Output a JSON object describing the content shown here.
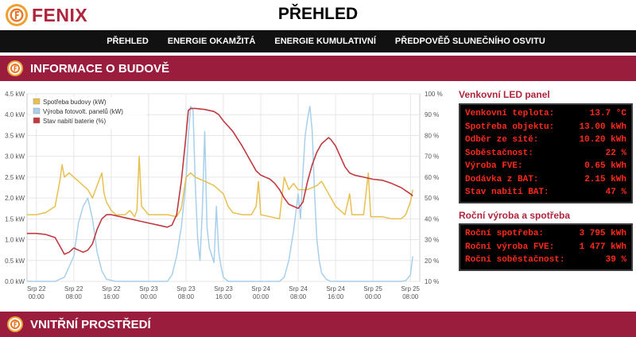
{
  "app": {
    "logo_text": "FENIX",
    "page_title": "PŘEHLED"
  },
  "nav": {
    "items": [
      "PŘEHLED",
      "ENERGIE OKAMŽITÁ",
      "ENERGIE KUMULATIVNÍ",
      "PŘEDPOVĚĎ SLUNEČNÍHO OSVITU"
    ]
  },
  "sections": {
    "building": "INFORMACE O BUDOVĚ",
    "indoor": "VNITŘNÍ PROSTŘEDÍ"
  },
  "colors": {
    "brand": "#9b1d3d",
    "consumption": "#e8c050",
    "pv": "#a8d0ec",
    "battery": "#c0393f",
    "led_text": "#ff2a1a"
  },
  "led_panel": {
    "title": "Venkovní LED panel",
    "rows": [
      {
        "label": "Venkovní teplota:",
        "value": "13.7 °C"
      },
      {
        "label": "Spotřeba objektu:",
        "value": "13.00 kWh"
      },
      {
        "label": "Odběr ze sítě:",
        "value": "10.20 kWh"
      },
      {
        "label": "Soběstačnost:",
        "value": "22 %"
      },
      {
        "label": "Výroba FVE:",
        "value": "0.65 kWh"
      },
      {
        "label": "Dodávka z BAT:",
        "value": "2.15 kWh"
      },
      {
        "label": "Stav nabití BAT:",
        "value": "47 %"
      }
    ]
  },
  "annual": {
    "title": "Roční výroba a spotřeba",
    "rows": [
      {
        "label": "Roční spotřeba:",
        "value": "3 795 kWh"
      },
      {
        "label": "Roční výroba FVE:",
        "value": "1 477 kWh"
      },
      {
        "label": "Roční soběstačnost:",
        "value": "39 %"
      }
    ]
  },
  "chart_data": {
    "type": "line",
    "legend": [
      "Spotřeba budovy (kW)",
      "Výroba fotovolt. panelů (kW)",
      "Stav nabití baterie (%)"
    ],
    "legend_position": "top-left",
    "grid": true,
    "x_ticks": [
      {
        "h": 0,
        "line1": "Srp 22",
        "line2": "00:00"
      },
      {
        "h": 8,
        "line1": "Srp 22",
        "line2": "08:00"
      },
      {
        "h": 16,
        "line1": "Srp 22",
        "line2": "16:00"
      },
      {
        "h": 24,
        "line1": "Srp 23",
        "line2": "00:00"
      },
      {
        "h": 32,
        "line1": "Srp 23",
        "line2": "08:00"
      },
      {
        "h": 40,
        "line1": "Srp 23",
        "line2": "16:00"
      },
      {
        "h": 48,
        "line1": "Srp 24",
        "line2": "00:00"
      },
      {
        "h": 56,
        "line1": "Srp 24",
        "line2": "08:00"
      },
      {
        "h": 64,
        "line1": "Srp 24",
        "line2": "16:00"
      },
      {
        "h": 72,
        "line1": "Srp 25",
        "line2": "00:00"
      },
      {
        "h": 80,
        "line1": "Srp 25",
        "line2": "08:00"
      }
    ],
    "xlim_hours": [
      -2,
      82
    ],
    "y_left": {
      "ylim": [
        0,
        4.5
      ],
      "ticks": [
        "0.0 kW",
        "0.5 kW",
        "1.0 kW",
        "1.5 kW",
        "2.0 kW",
        "2.5 kW",
        "3.0 kW",
        "3.5 kW",
        "4.0 kW",
        "4.5 kW"
      ]
    },
    "y_right": {
      "ylim": [
        10,
        100
      ],
      "ticks": [
        "10 %",
        "20 %",
        "30 %",
        "40 %",
        "50 %",
        "60 %",
        "70 %",
        "80 %",
        "90 %",
        "100 %"
      ]
    },
    "series": [
      {
        "name": "Spotřeba budovy (kW)",
        "axis": "left",
        "points": [
          [
            -2,
            1.6
          ],
          [
            0,
            1.6
          ],
          [
            2,
            1.65
          ],
          [
            4,
            1.8
          ],
          [
            5,
            2.4
          ],
          [
            5.5,
            2.8
          ],
          [
            6,
            2.5
          ],
          [
            7,
            2.6
          ],
          [
            8,
            2.5
          ],
          [
            9,
            2.4
          ],
          [
            10,
            2.3
          ],
          [
            11,
            2.2
          ],
          [
            12,
            2.0
          ],
          [
            13,
            2.3
          ],
          [
            14,
            2.6
          ],
          [
            14.5,
            2.1
          ],
          [
            15,
            1.9
          ],
          [
            16,
            1.7
          ],
          [
            17,
            1.6
          ],
          [
            19,
            1.6
          ],
          [
            20,
            1.7
          ],
          [
            21,
            1.55
          ],
          [
            21.5,
            1.7
          ],
          [
            22,
            3.0
          ],
          [
            22.5,
            1.8
          ],
          [
            24,
            1.6
          ],
          [
            26,
            1.6
          ],
          [
            28,
            1.6
          ],
          [
            30,
            1.55
          ],
          [
            31,
            1.75
          ],
          [
            32,
            2.5
          ],
          [
            33,
            2.6
          ],
          [
            34,
            2.5
          ],
          [
            36,
            2.4
          ],
          [
            38,
            2.3
          ],
          [
            40,
            2.1
          ],
          [
            41,
            1.8
          ],
          [
            42,
            1.65
          ],
          [
            44,
            1.6
          ],
          [
            46,
            1.6
          ],
          [
            47,
            1.8
          ],
          [
            47.5,
            2.4
          ],
          [
            48,
            1.6
          ],
          [
            50,
            1.55
          ],
          [
            52,
            1.5
          ],
          [
            53,
            2.5
          ],
          [
            54,
            2.2
          ],
          [
            55,
            2.35
          ],
          [
            56,
            2.2
          ],
          [
            58,
            2.2
          ],
          [
            60,
            2.3
          ],
          [
            61,
            2.4
          ],
          [
            62,
            2.2
          ],
          [
            63,
            2.0
          ],
          [
            64,
            1.8
          ],
          [
            66,
            1.6
          ],
          [
            67,
            2.1
          ],
          [
            67.5,
            1.6
          ],
          [
            70,
            1.6
          ],
          [
            71,
            2.6
          ],
          [
            71.5,
            1.55
          ],
          [
            74,
            1.55
          ],
          [
            76,
            1.5
          ],
          [
            78,
            1.5
          ],
          [
            79,
            1.6
          ],
          [
            80,
            1.9
          ],
          [
            80.5,
            2.2
          ]
        ]
      },
      {
        "name": "Výroba fotovolt. panelů (kW)",
        "axis": "left",
        "points": [
          [
            -2,
            0
          ],
          [
            4,
            0
          ],
          [
            6,
            0.1
          ],
          [
            8,
            0.6
          ],
          [
            9,
            1.4
          ],
          [
            10,
            1.8
          ],
          [
            11,
            2.0
          ],
          [
            12,
            1.5
          ],
          [
            13,
            0.7
          ],
          [
            14,
            0.25
          ],
          [
            15,
            0.05
          ],
          [
            17,
            0
          ],
          [
            28,
            0
          ],
          [
            29,
            0.15
          ],
          [
            30,
            0.6
          ],
          [
            31,
            1.3
          ],
          [
            32,
            2.4
          ],
          [
            32.5,
            3.5
          ],
          [
            33,
            4.2
          ],
          [
            33.5,
            4.1
          ],
          [
            34,
            2.3
          ],
          [
            34.5,
            1.0
          ],
          [
            35,
            0.5
          ],
          [
            35.5,
            1.7
          ],
          [
            36,
            3.6
          ],
          [
            36.5,
            1.3
          ],
          [
            37,
            0.8
          ],
          [
            38,
            0.45
          ],
          [
            38.5,
            1.8
          ],
          [
            39,
            0.7
          ],
          [
            39.5,
            0.35
          ],
          [
            40,
            0.1
          ],
          [
            41,
            0
          ],
          [
            52,
            0
          ],
          [
            53,
            0.1
          ],
          [
            54,
            0.5
          ],
          [
            55,
            1.2
          ],
          [
            56,
            2.1
          ],
          [
            56.5,
            1.5
          ],
          [
            57,
            2.6
          ],
          [
            57.5,
            3.5
          ],
          [
            58,
            3.9
          ],
          [
            58.5,
            4.2
          ],
          [
            59,
            3.6
          ],
          [
            59.5,
            2.1
          ],
          [
            60,
            1.0
          ],
          [
            60.5,
            0.5
          ],
          [
            61,
            0.2
          ],
          [
            62,
            0.05
          ],
          [
            63,
            0
          ],
          [
            76,
            0
          ],
          [
            78,
            0
          ],
          [
            79,
            0.02
          ],
          [
            80,
            0.15
          ],
          [
            80.5,
            0.6
          ]
        ]
      },
      {
        "name": "Stav nabití baterie (%)",
        "axis": "right",
        "points": [
          [
            -2,
            33
          ],
          [
            0,
            33
          ],
          [
            2,
            32.5
          ],
          [
            4,
            31
          ],
          [
            5,
            27
          ],
          [
            6,
            23
          ],
          [
            7,
            24
          ],
          [
            8,
            26
          ],
          [
            9,
            25
          ],
          [
            10,
            24
          ],
          [
            11,
            25
          ],
          [
            12,
            28
          ],
          [
            13,
            35
          ],
          [
            14,
            40
          ],
          [
            15,
            42
          ],
          [
            16,
            42
          ],
          [
            18,
            41
          ],
          [
            20,
            40
          ],
          [
            22,
            39
          ],
          [
            24,
            38
          ],
          [
            26,
            37
          ],
          [
            28,
            36
          ],
          [
            29,
            37
          ],
          [
            30,
            42
          ],
          [
            31,
            58
          ],
          [
            32,
            80
          ],
          [
            32.5,
            92
          ],
          [
            33,
            93
          ],
          [
            34,
            93
          ],
          [
            36,
            92.5
          ],
          [
            38,
            91.5
          ],
          [
            39,
            90
          ],
          [
            40,
            87
          ],
          [
            42,
            82
          ],
          [
            44,
            75
          ],
          [
            46,
            67
          ],
          [
            47,
            63
          ],
          [
            48,
            61
          ],
          [
            50,
            59
          ],
          [
            51,
            57
          ],
          [
            52,
            54
          ],
          [
            53,
            50
          ],
          [
            54,
            47
          ],
          [
            55,
            46
          ],
          [
            56,
            45
          ],
          [
            57,
            48
          ],
          [
            58,
            58
          ],
          [
            59,
            66
          ],
          [
            60,
            72
          ],
          [
            61,
            76
          ],
          [
            62,
            78
          ],
          [
            62.5,
            79
          ],
          [
            63,
            78
          ],
          [
            64,
            75
          ],
          [
            65,
            70
          ],
          [
            66,
            65
          ],
          [
            67,
            62
          ],
          [
            68,
            61
          ],
          [
            70,
            60
          ],
          [
            72,
            59
          ],
          [
            74,
            58.5
          ],
          [
            76,
            57
          ],
          [
            78,
            55
          ],
          [
            80,
            52
          ],
          [
            80.5,
            51
          ]
        ]
      }
    ]
  }
}
